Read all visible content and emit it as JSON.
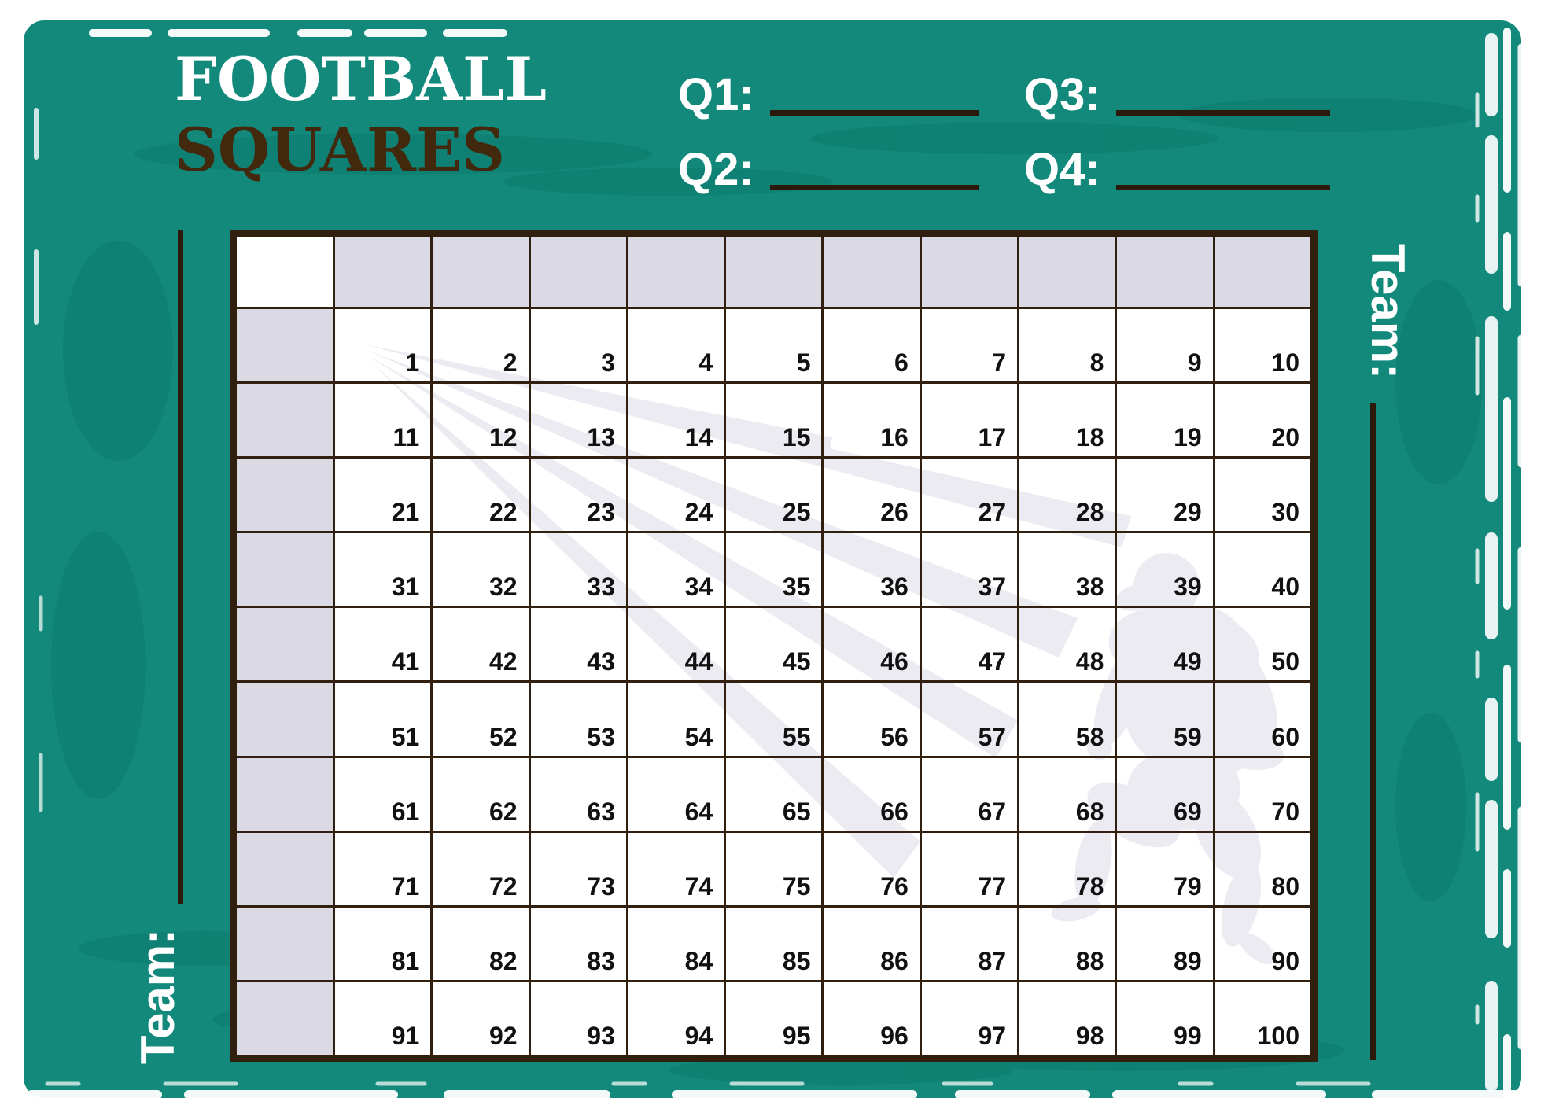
{
  "title": {
    "line1": "FOOTBALL",
    "line2": "SQUARES"
  },
  "quarters": [
    {
      "id": "q1",
      "label": "Q1:",
      "value": ""
    },
    {
      "id": "q2",
      "label": "Q2:",
      "value": ""
    },
    {
      "id": "q3",
      "label": "Q3:",
      "value": ""
    },
    {
      "id": "q4",
      "label": "Q4:",
      "value": ""
    }
  ],
  "teams": {
    "left_label": "Team:",
    "left_value": "",
    "right_label": "Team:",
    "right_value": ""
  },
  "grid": {
    "corner_label": "",
    "header_cells_empty": true,
    "rows": [
      [
        1,
        2,
        3,
        4,
        5,
        6,
        7,
        8,
        9,
        10
      ],
      [
        11,
        12,
        13,
        14,
        15,
        16,
        17,
        18,
        19,
        20
      ],
      [
        21,
        22,
        23,
        24,
        25,
        26,
        27,
        28,
        29,
        30
      ],
      [
        31,
        32,
        33,
        34,
        35,
        36,
        37,
        38,
        39,
        40
      ],
      [
        41,
        42,
        43,
        44,
        45,
        46,
        47,
        48,
        49,
        50
      ],
      [
        51,
        52,
        53,
        54,
        55,
        56,
        57,
        58,
        59,
        60
      ],
      [
        61,
        62,
        63,
        64,
        65,
        66,
        67,
        68,
        69,
        70
      ],
      [
        71,
        72,
        73,
        74,
        75,
        76,
        77,
        78,
        79,
        80
      ],
      [
        81,
        82,
        83,
        84,
        85,
        86,
        87,
        88,
        89,
        90
      ],
      [
        91,
        92,
        93,
        94,
        95,
        96,
        97,
        98,
        99,
        100
      ]
    ]
  },
  "icons": {
    "watermark_player": "football-player-watermark",
    "watermark_streaks": "motion-streaks-watermark"
  },
  "colors": {
    "teal": "#12897b",
    "teal_dark": "#0a7064",
    "line": "#31200f",
    "brown_title": "#42290e",
    "brown_field": "#2b1a0c",
    "lavender": "#dbd9e4",
    "watermark": "#ecebf2",
    "num": "#111111"
  }
}
